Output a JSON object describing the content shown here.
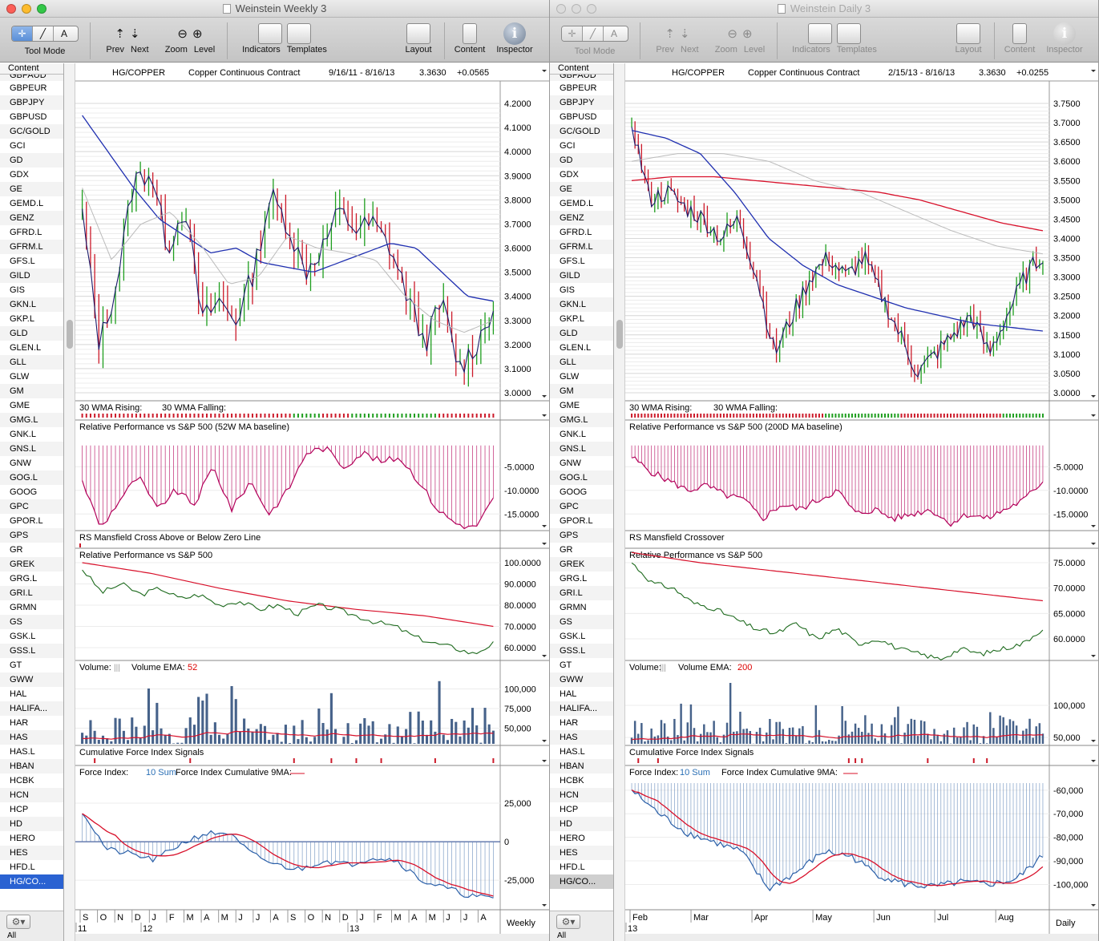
{
  "windows": [
    {
      "title": "Weinstein Weekly 3",
      "active": true,
      "header": {
        "symbol": "HG/COPPER",
        "name": "Copper Continuous Contract",
        "range": "9/16/11 - 8/16/13",
        "last": "3.3630",
        "change": "+0.0565"
      },
      "price_ticks": [
        "4.2000",
        "4.1000",
        "4.0000",
        "3.9000",
        "3.8000",
        "3.7000",
        "3.6000",
        "3.5000",
        "3.4000",
        "3.3000",
        "3.2000",
        "3.1000",
        "3.0000"
      ],
      "wma_panel": {
        "rising": "30 WMA Rising:",
        "falling": "30 WMA Falling:"
      },
      "rp_ma": {
        "title": "Relative Performance vs S&P 500 (52W MA baseline)",
        "ticks": [
          "-5.0000",
          "-10.0000",
          "-15.0000"
        ]
      },
      "rsm": {
        "title": "RS Mansfield Cross Above or Below Zero Line"
      },
      "rp": {
        "title": "Relative Performance vs S&P 500",
        "ticks": [
          "100.0000",
          "90.0000",
          "80.0000",
          "70.0000",
          "60.0000"
        ]
      },
      "volume": {
        "title": "Volume:",
        "ema_label": "Volume EMA:",
        "ema_value": "52",
        "ticks": [
          "100,000",
          "75,000",
          "50,000"
        ]
      },
      "cfi": {
        "title": "Cumulative Force Index Signals"
      },
      "fi": {
        "title": "Force Index:",
        "sum": "10 Sum",
        "cum_label": "Force Index Cumulative 9MA:",
        "ticks": [
          "25,000",
          "0",
          "-25,000"
        ]
      },
      "xaxis": {
        "months": [
          "S",
          "O",
          "N",
          "D",
          "J",
          "F",
          "M",
          "A",
          "M",
          "J",
          "J",
          "A",
          "S",
          "O",
          "N",
          "D",
          "J",
          "F",
          "M",
          "A",
          "M",
          "J",
          "J",
          "A"
        ],
        "years": [
          "11",
          "12",
          "13"
        ],
        "period": "Weekly"
      }
    },
    {
      "title": "Weinstein Daily 3",
      "active": false,
      "header": {
        "symbol": "HG/COPPER",
        "name": "Copper Continuous Contract",
        "range": "2/15/13 - 8/16/13",
        "last": "3.3630",
        "change": "+0.0255"
      },
      "price_ticks": [
        "3.7500",
        "3.7000",
        "3.6500",
        "3.6000",
        "3.5500",
        "3.5000",
        "3.4500",
        "3.4000",
        "3.3500",
        "3.3000",
        "3.2500",
        "3.2000",
        "3.1500",
        "3.1000",
        "3.0500",
        "3.0000"
      ],
      "wma_panel": {
        "rising": "30 WMA Rising:",
        "falling": "30 WMA Falling:"
      },
      "rp_ma": {
        "title": "Relative Performance vs S&P 500 (200D MA baseline)",
        "ticks": [
          "-5.0000",
          "-10.0000",
          "-15.0000"
        ]
      },
      "rsm": {
        "title": "RS Mansfield Crossover"
      },
      "rp": {
        "title": "Relative Performance vs S&P 500",
        "ticks": [
          "75.0000",
          "70.0000",
          "65.0000",
          "60.0000"
        ]
      },
      "volume": {
        "title": "Volume:",
        "ema_label": "Volume EMA:",
        "ema_value": "200",
        "ticks": [
          "100,000",
          "50,000"
        ]
      },
      "cfi": {
        "title": "Cumulative Force Index Signals"
      },
      "fi": {
        "title": "Force Index:",
        "sum": "10 Sum",
        "cum_label": "Force Index Cumulative 9MA:",
        "ticks": [
          "-60,000",
          "-70,000",
          "-80,000",
          "-90,000",
          "-100,000"
        ]
      },
      "xaxis": {
        "months": [
          "Feb",
          "Mar",
          "Apr",
          "May",
          "Jun",
          "Jul",
          "Aug"
        ],
        "years": [
          "13"
        ],
        "period": "Daily"
      }
    }
  ],
  "toolbar": {
    "tool_mode": "Tool Mode",
    "prev": "Prev",
    "next": "Next",
    "zoom": "Zoom",
    "level": "Level",
    "indicators": "Indicators",
    "templates": "Templates",
    "layout": "Layout",
    "content": "Content",
    "inspector": "Inspector"
  },
  "sidebar": {
    "header": "Content",
    "items": [
      "GBPAUD",
      "GBPEUR",
      "GBPJPY",
      "GBPUSD",
      "GC/GOLD",
      "GCI",
      "GD",
      "GDX",
      "GE",
      "GEMD.L",
      "GENZ",
      "GFRD.L",
      "GFRM.L",
      "GFS.L",
      "GILD",
      "GIS",
      "GKN.L",
      "GKP.L",
      "GLD",
      "GLEN.L",
      "GLL",
      "GLW",
      "GM",
      "GME",
      "GMG.L",
      "GNK.L",
      "GNS.L",
      "GNW",
      "GOG.L",
      "GOOG",
      "GPC",
      "GPOR.L",
      "GPS",
      "GR",
      "GREK",
      "GRG.L",
      "GRI.L",
      "GRMN",
      "GS",
      "GSK.L",
      "GSS.L",
      "GT",
      "GWW",
      "HAL",
      "HALIFA...",
      "HAR",
      "HAS",
      "HAS.L",
      "HBAN",
      "HCBK",
      "HCN",
      "HCP",
      "HD",
      "HERO",
      "HES",
      "HFD.L",
      "HG/CO..."
    ],
    "selected": "HG/CO...",
    "footer": "All"
  },
  "colors": {
    "up": "#1e9e1e",
    "down": "#cc1a2a",
    "ma_blue": "#1f2fb0",
    "ma_red": "#d8102a",
    "ma_gray": "#bbbbbb",
    "rp_bar": "#b3005a",
    "fi_bar": "#5f86b8",
    "grid": "#d9d9d9"
  }
}
